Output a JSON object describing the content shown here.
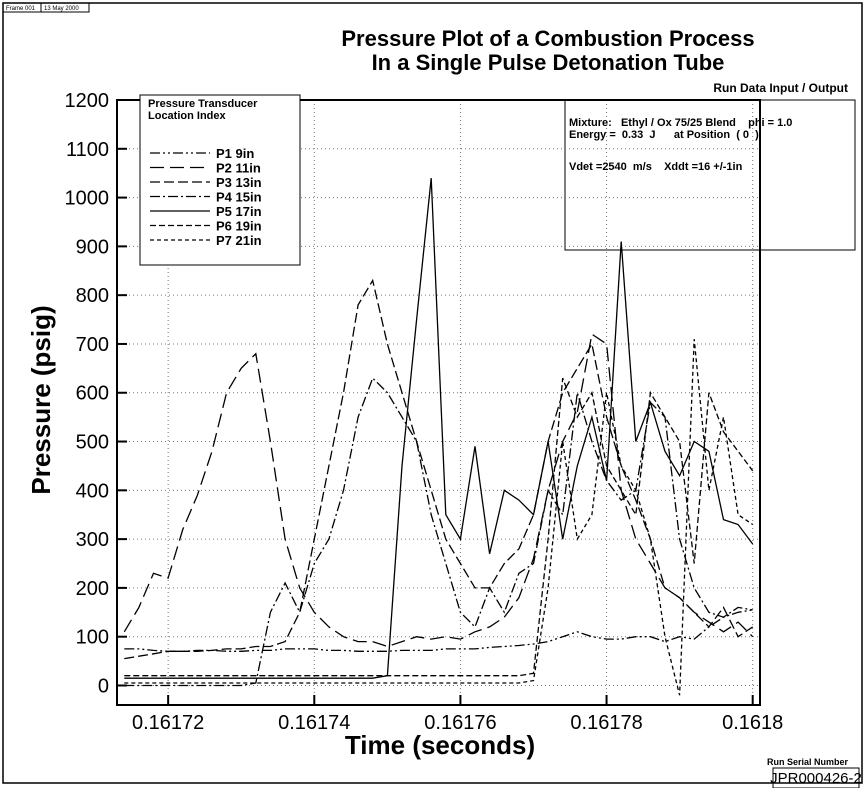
{
  "header": {
    "frame": "Frame 001",
    "date": "13 May 2000"
  },
  "run_data": {
    "heading": "Run Data Input / Output",
    "lines": [
      "Mixture:   Ethyl / Ox 75/25 Blend    phi = 1.0",
      "Energy =  0.33  J      at Position  ( 0  )",
      "Vdet =2540  m/s    Xddt =16 +/-1in"
    ]
  },
  "serial": {
    "label": "Run Serial Number",
    "value": "JPR000426-2"
  },
  "chart_data": {
    "type": "line",
    "title": [
      "Pressure Plot of a Combustion Process",
      "In a Single Pulse Detonation Tube"
    ],
    "x_label": "Time (seconds)",
    "y_label": "Pressure (psig)",
    "legend_title": [
      "Pressure Transducer",
      "Location Index"
    ],
    "xlim": [
      0.161713,
      0.161801
    ],
    "ylim": [
      -40,
      1200
    ],
    "xticks": [
      0.16172,
      0.16174,
      0.16176,
      0.16178,
      0.1618
    ],
    "yticks": [
      0,
      100,
      200,
      300,
      400,
      500,
      600,
      700,
      800,
      900,
      1000,
      1100,
      1200
    ],
    "grid": true,
    "x": [
      0.161714,
      0.161716,
      0.161718,
      0.16172,
      0.161722,
      0.161724,
      0.161726,
      0.161728,
      0.16173,
      0.161732,
      0.161734,
      0.161736,
      0.161738,
      0.16174,
      0.161742,
      0.161744,
      0.161746,
      0.161748,
      0.16175,
      0.161752,
      0.161754,
      0.161756,
      0.161758,
      0.16176,
      0.161762,
      0.161764,
      0.161766,
      0.161768,
      0.16177,
      0.161772,
      0.161774,
      0.161776,
      0.161778,
      0.16178,
      0.161782,
      0.161784,
      0.161786,
      0.161788,
      0.16179,
      0.161792,
      0.161794,
      0.161796,
      0.161798,
      0.1618
    ],
    "series": [
      {
        "name": "P1 9in",
        "color": "#000",
        "dash": "10 3 2 3 2 3",
        "values": [
          75,
          75,
          72,
          70,
          70,
          72,
          72,
          70,
          70,
          72,
          72,
          75,
          75,
          75,
          72,
          72,
          70,
          70,
          70,
          72,
          72,
          72,
          75,
          75,
          75,
          78,
          80,
          82,
          85,
          90,
          100,
          110,
          100,
          95,
          95,
          100,
          100,
          90,
          100,
          95,
          120,
          140,
          150,
          155
        ]
      },
      {
        "name": "P2 11in",
        "color": "#000",
        "dash": "14 6",
        "values": [
          110,
          160,
          230,
          220,
          320,
          390,
          480,
          600,
          650,
          680,
          500,
          300,
          200,
          150,
          120,
          100,
          90,
          90,
          80,
          90,
          100,
          95,
          100,
          95,
          110,
          120,
          140,
          180,
          260,
          400,
          500,
          560,
          720,
          700,
          400,
          300,
          250,
          200,
          180,
          150,
          130,
          110,
          130,
          100
        ]
      },
      {
        "name": "P3 13in",
        "color": "#000",
        "dash": "10 4",
        "values": [
          55,
          60,
          65,
          70,
          70,
          70,
          72,
          75,
          75,
          80,
          80,
          90,
          150,
          300,
          450,
          600,
          780,
          830,
          700,
          600,
          500,
          400,
          300,
          250,
          200,
          200,
          250,
          280,
          350,
          500,
          600,
          650,
          700,
          550,
          450,
          380,
          300,
          200,
          180,
          150,
          120,
          160,
          100,
          120
        ]
      },
      {
        "name": "P4 15in",
        "color": "#000",
        "dash": "10 3 2 3",
        "values": [
          0,
          0,
          0,
          0,
          0,
          0,
          0,
          0,
          0,
          5,
          150,
          210,
          150,
          250,
          300,
          400,
          550,
          630,
          600,
          550,
          500,
          350,
          250,
          150,
          120,
          200,
          150,
          230,
          250,
          400,
          350,
          600,
          500,
          420,
          380,
          400,
          580,
          550,
          300,
          200,
          150,
          140,
          160,
          155
        ]
      },
      {
        "name": "P5 17in",
        "color": "#000",
        "dash": "none",
        "values": [
          15,
          15,
          15,
          15,
          15,
          15,
          15,
          15,
          15,
          15,
          15,
          15,
          15,
          15,
          15,
          15,
          15,
          15,
          20,
          450,
          750,
          1040,
          350,
          300,
          490,
          270,
          400,
          380,
          350,
          500,
          300,
          450,
          550,
          420,
          910,
          500,
          580,
          480,
          430,
          500,
          480,
          340,
          330,
          290
        ]
      },
      {
        "name": "P6 19in",
        "color": "#000",
        "dash": "6 3",
        "values": [
          20,
          20,
          20,
          20,
          20,
          20,
          20,
          20,
          20,
          20,
          20,
          20,
          20,
          20,
          20,
          20,
          20,
          20,
          20,
          20,
          20,
          20,
          20,
          20,
          20,
          20,
          20,
          20,
          25,
          300,
          630,
          550,
          600,
          450,
          400,
          350,
          600,
          550,
          500,
          250,
          600,
          520,
          480,
          440
        ]
      },
      {
        "name": "P7 21in",
        "color": "#000",
        "dash": "4 3",
        "values": [
          5,
          5,
          5,
          5,
          5,
          5,
          5,
          5,
          5,
          5,
          5,
          5,
          5,
          5,
          5,
          5,
          5,
          5,
          5,
          5,
          5,
          5,
          5,
          5,
          5,
          5,
          5,
          5,
          10,
          200,
          500,
          300,
          350,
          600,
          450,
          400,
          300,
          100,
          -20,
          710,
          400,
          550,
          350,
          330
        ]
      }
    ]
  }
}
